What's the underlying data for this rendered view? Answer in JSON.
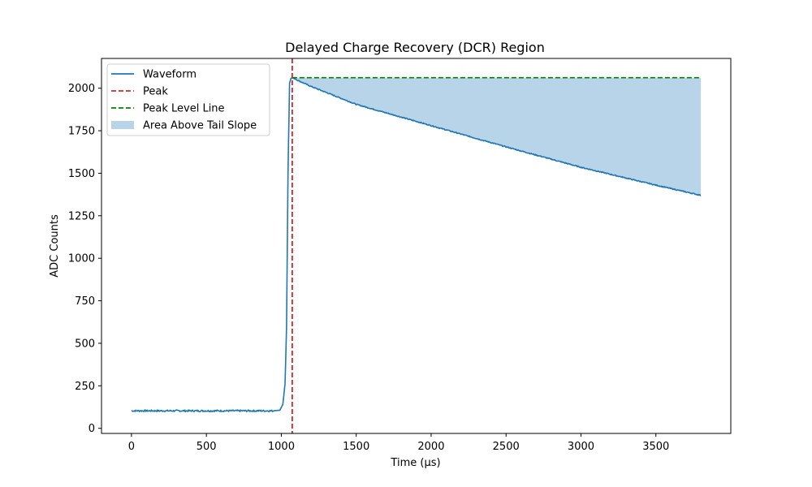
{
  "chart_data": {
    "type": "line",
    "title": "Delayed Charge Recovery (DCR) Region",
    "xlabel": "Time (µs)",
    "ylabel": "ADC Counts",
    "xlim": [
      -200,
      4000
    ],
    "ylim": [
      -30,
      2175
    ],
    "x_ticks": [
      0,
      500,
      1000,
      1500,
      2000,
      2500,
      3000,
      3500
    ],
    "y_ticks": [
      0,
      250,
      500,
      750,
      1000,
      1250,
      1500,
      1750,
      2000
    ],
    "grid": false,
    "legend_position": "top-left",
    "colors": {
      "waveform": "#1f77b4",
      "peak": "#d62728",
      "peak_level": "#008000",
      "area": "#b8d4e8"
    },
    "series": [
      {
        "name": "Waveform",
        "baseline": 103,
        "points": [
          [
            0,
            103
          ],
          [
            940,
            103
          ],
          [
            990,
            106
          ],
          [
            1010,
            140
          ],
          [
            1025,
            260
          ],
          [
            1035,
            600
          ],
          [
            1045,
            1500
          ],
          [
            1055,
            2030
          ],
          [
            1065,
            2058
          ],
          [
            1073,
            2062
          ],
          [
            1100,
            2050
          ],
          [
            1200,
            2010
          ],
          [
            1500,
            1905
          ],
          [
            2000,
            1780
          ],
          [
            2500,
            1655
          ],
          [
            3000,
            1535
          ],
          [
            3500,
            1430
          ],
          [
            3800,
            1370
          ]
        ]
      },
      {
        "name": "Peak",
        "x": 1073
      },
      {
        "name": "Peak Level Line",
        "y": 2062,
        "x_start": 1073,
        "x_end": 3800
      },
      {
        "name": "Area Above Tail Slope",
        "x_start": 1073,
        "x_end": 3800
      }
    ]
  }
}
